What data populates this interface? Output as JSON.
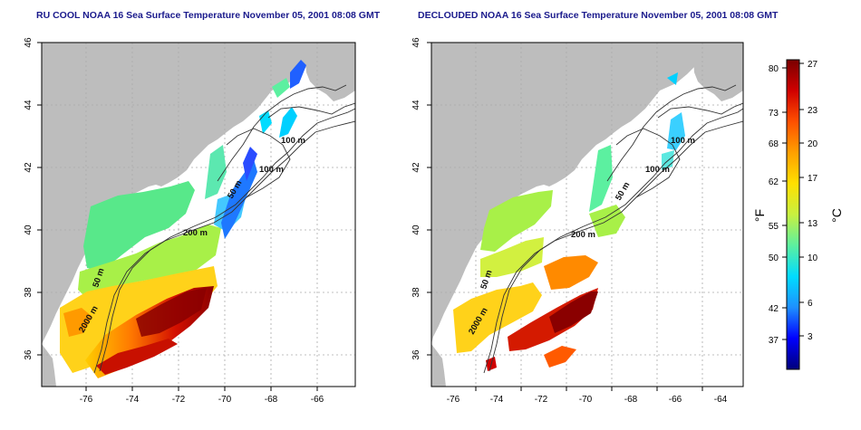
{
  "panels": [
    {
      "title": "RU COOL NOAA 16 Sea Surface Temperature November 05, 2001 08:08 GMT",
      "labels": {
        "m100a": "100 m",
        "m100b": "100 m",
        "m50": "50 m",
        "m200": "200 m",
        "m50b": "50 m",
        "m2000": "2000 m"
      }
    },
    {
      "title": "DECLOUDED NOAA 16 Sea Surface Temperature November 05, 2001 08:08 GMT",
      "labels": {
        "m100a": "100 m",
        "m100b": "100 m",
        "m50": "50 m",
        "m200": "200 m",
        "m50b": "50 m",
        "m2000": "2000 m"
      }
    }
  ],
  "axes": {
    "x_ticks": [
      "-76",
      "-74",
      "-72",
      "-70",
      "-68",
      "-66",
      "-64"
    ],
    "y_ticks": [
      "36",
      "38",
      "40",
      "42",
      "44",
      "46"
    ]
  },
  "colorbar": {
    "left_unit": "°F",
    "right_unit": "°C",
    "f_ticks": [
      "80",
      "73",
      "68",
      "62",
      "55",
      "50",
      "42",
      "37"
    ],
    "c_ticks": [
      "27",
      "23",
      "20",
      "17",
      "13",
      "10",
      "6",
      "3"
    ],
    "colors": [
      "#00007a",
      "#0000ff",
      "#1e90ff",
      "#00dcff",
      "#5cf0a0",
      "#c8f040",
      "#ffe000",
      "#ffa000",
      "#ff5000",
      "#d00000",
      "#7a0000"
    ]
  },
  "map_colors": {
    "land": "#bdbdbd",
    "ocean": "#ffffff",
    "contour": "#333333",
    "grid": "#aaaaaa"
  }
}
